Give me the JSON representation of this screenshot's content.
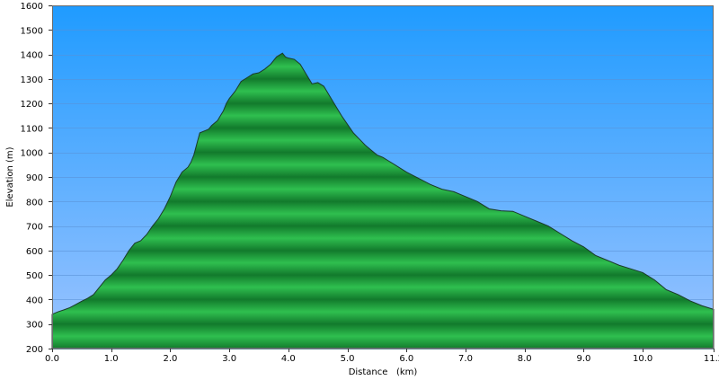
{
  "chart_data": {
    "type": "area",
    "xlabel": "Distance   (km)",
    "ylabel": "Elevation  (m)",
    "xlim": [
      0,
      11.2
    ],
    "ylim": [
      200,
      1600
    ],
    "x_ticks": [
      "0.0",
      "1.0",
      "2.0",
      "3.0",
      "4.0",
      "5.0",
      "6.0",
      "7.0",
      "8.0",
      "9.0",
      "10.0",
      "11.2"
    ],
    "y_ticks": [
      "200",
      "300",
      "400",
      "500",
      "600",
      "700",
      "800",
      "900",
      "1000",
      "1100",
      "1200",
      "1300",
      "1400",
      "1500",
      "1600"
    ],
    "grid": true,
    "legend": "none",
    "colors": {
      "sky_top": "#1f9bff",
      "sky_bottom": "#9dc4ff",
      "fill_light": "#2fbf4f",
      "fill_dark": "#127a2c",
      "outline": "#1b3a2a"
    },
    "series": [
      {
        "x": [
          0.0,
          0.1,
          0.2,
          0.3,
          0.4,
          0.5,
          0.6,
          0.7,
          0.8,
          0.9,
          1.0,
          1.1,
          1.2,
          1.3,
          1.4,
          1.5,
          1.6,
          1.7,
          1.8,
          1.9,
          2.0,
          2.1,
          2.2,
          2.3,
          2.35,
          2.4,
          2.5,
          2.6,
          2.65,
          2.7,
          2.8,
          2.9,
          2.95,
          3.0,
          3.1,
          3.2,
          3.3,
          3.4,
          3.5,
          3.6,
          3.7,
          3.8,
          3.9,
          3.95,
          4.0,
          4.1,
          4.2,
          4.3,
          4.4,
          4.5,
          4.6,
          4.7,
          4.8,
          4.9,
          5.0,
          5.1,
          5.2,
          5.3,
          5.4,
          5.5,
          5.6,
          5.7,
          5.8,
          5.9,
          6.0,
          6.2,
          6.4,
          6.6,
          6.8,
          7.0,
          7.2,
          7.4,
          7.6,
          7.8,
          8.0,
          8.2,
          8.4,
          8.6,
          8.8,
          9.0,
          9.2,
          9.4,
          9.6,
          9.8,
          10.0,
          10.2,
          10.4,
          10.6,
          10.8,
          11.0,
          11.2
        ],
        "values": [
          340,
          350,
          358,
          367,
          380,
          393,
          405,
          420,
          450,
          480,
          500,
          525,
          560,
          600,
          630,
          640,
          665,
          700,
          730,
          770,
          820,
          880,
          920,
          940,
          960,
          990,
          1080,
          1090,
          1095,
          1110,
          1130,
          1170,
          1200,
          1220,
          1250,
          1290,
          1305,
          1320,
          1325,
          1340,
          1360,
          1390,
          1405,
          1390,
          1385,
          1380,
          1360,
          1320,
          1280,
          1285,
          1270,
          1230,
          1190,
          1150,
          1115,
          1080,
          1055,
          1030,
          1010,
          990,
          980,
          965,
          950,
          935,
          920,
          895,
          870,
          850,
          840,
          820,
          800,
          770,
          762,
          760,
          740,
          720,
          700,
          670,
          640,
          615,
          580,
          560,
          540,
          525,
          510,
          480,
          440,
          420,
          395,
          375,
          360
        ]
      }
    ]
  }
}
